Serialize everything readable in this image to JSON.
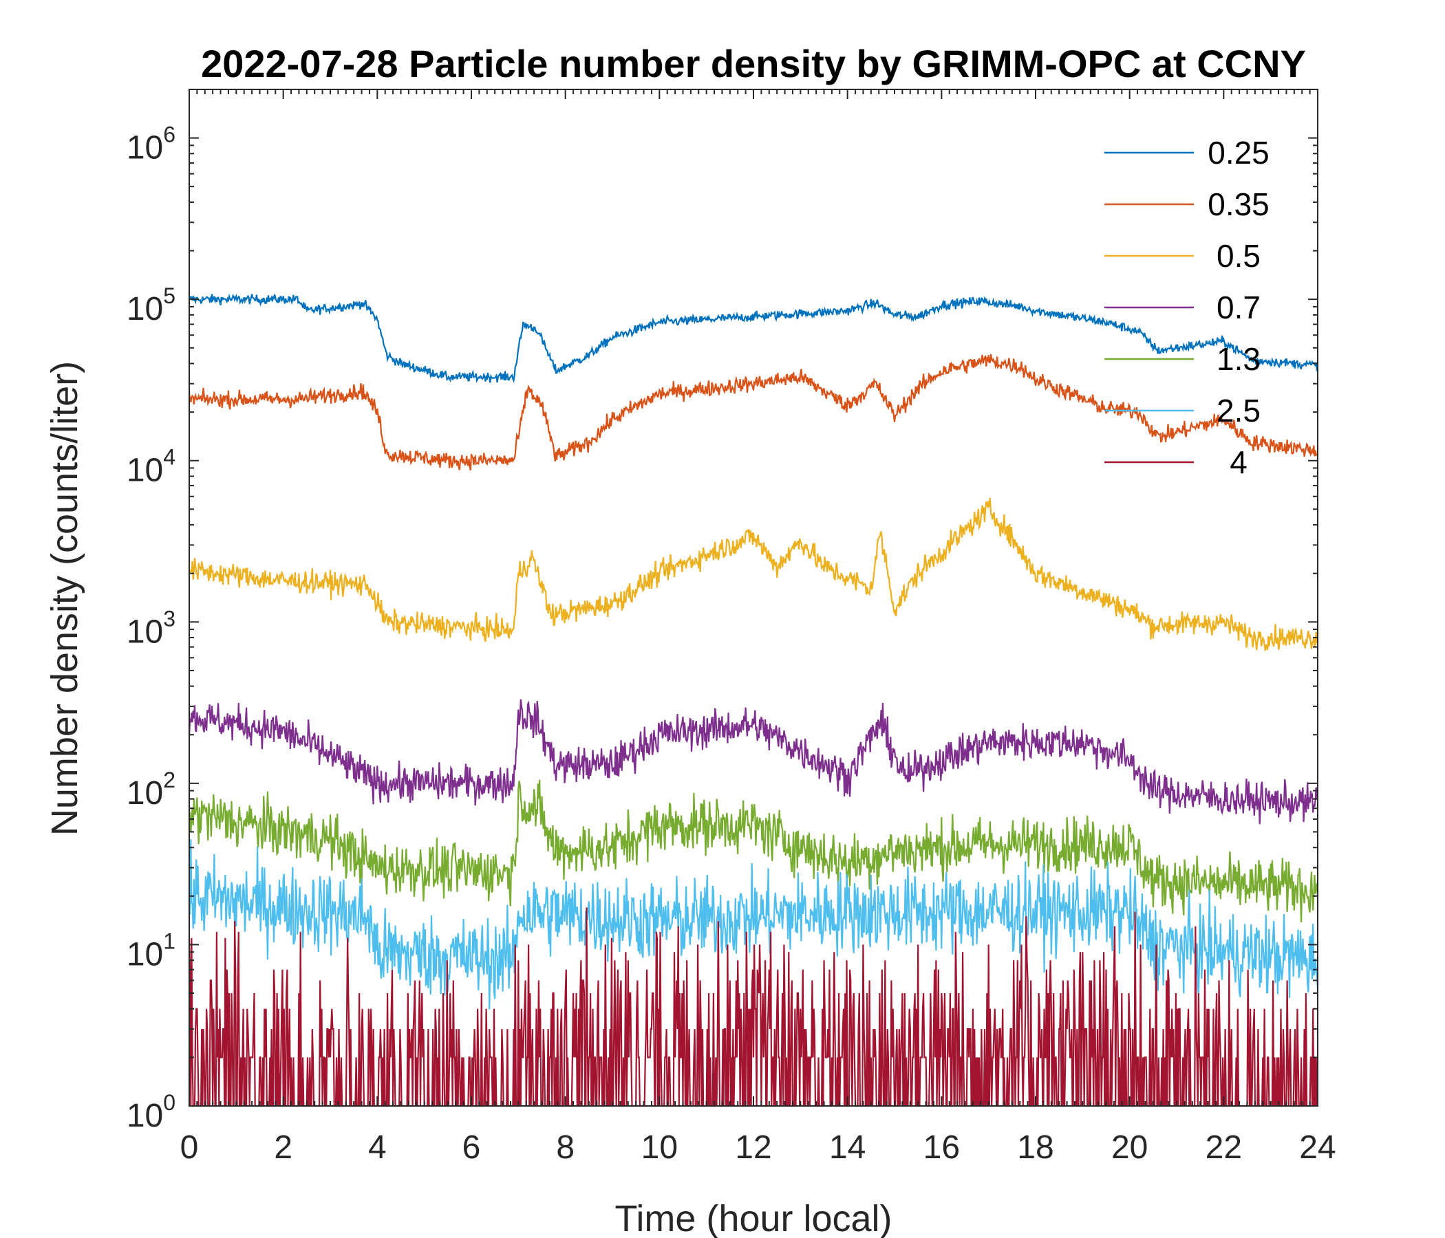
{
  "chart_data": {
    "type": "line",
    "title": "2022-07-28 Particle number density by GRIMM-OPC at CCNY",
    "xlabel": "Time (hour local)",
    "ylabel": "Number density (counts/liter)",
    "xlim": [
      0,
      24
    ],
    "ylim": [
      1,
      2000000
    ],
    "yscale": "log",
    "xticks": [
      0,
      2,
      4,
      6,
      8,
      10,
      12,
      14,
      16,
      18,
      20,
      22,
      24
    ],
    "xtick_labels": [
      "0",
      "2",
      "4",
      "6",
      "8",
      "10",
      "12",
      "14",
      "16",
      "18",
      "20",
      "22",
      "24"
    ],
    "yticks": [
      1,
      10,
      100,
      1000,
      10000,
      100000,
      1000000
    ],
    "ytick_base": "10",
    "ytick_exponents": [
      "0",
      "1",
      "2",
      "3",
      "4",
      "5",
      "6"
    ],
    "legend_position": "top-right",
    "series": [
      {
        "name": "0.25",
        "color": "#0072BD",
        "noise": 0.02,
        "points": [
          [
            0,
            100000
          ],
          [
            2.3,
            100000
          ],
          [
            2.5,
            85000
          ],
          [
            3.5,
            92000
          ],
          [
            3.7,
            95000
          ],
          [
            4.0,
            75000
          ],
          [
            4.2,
            45000
          ],
          [
            4.5,
            40000
          ],
          [
            5.5,
            33000
          ],
          [
            6.9,
            33000
          ],
          [
            7.1,
            70000
          ],
          [
            7.4,
            65000
          ],
          [
            7.8,
            36000
          ],
          [
            8.5,
            45000
          ],
          [
            9,
            58000
          ],
          [
            10,
            72000
          ],
          [
            12,
            78000
          ],
          [
            14,
            85000
          ],
          [
            14.6,
            95000
          ],
          [
            15.0,
            80000
          ],
          [
            15.5,
            78000
          ],
          [
            16,
            92000
          ],
          [
            16.8,
            98000
          ],
          [
            17.7,
            90000
          ],
          [
            18,
            85000
          ],
          [
            19.5,
            72000
          ],
          [
            20.2,
            63000
          ],
          [
            20.6,
            48000
          ],
          [
            22,
            55000
          ],
          [
            22.6,
            42000
          ],
          [
            24,
            39000
          ]
        ]
      },
      {
        "name": "0.35",
        "color": "#D95319",
        "noise": 0.035,
        "points": [
          [
            0,
            24000
          ],
          [
            2.3,
            24000
          ],
          [
            3.7,
            27000
          ],
          [
            4.0,
            20000
          ],
          [
            4.2,
            11000
          ],
          [
            5.5,
            10000
          ],
          [
            6.9,
            10000
          ],
          [
            7.2,
            28000
          ],
          [
            7.5,
            22000
          ],
          [
            7.8,
            10500
          ],
          [
            8.5,
            13000
          ],
          [
            9,
            18000
          ],
          [
            10,
            26000
          ],
          [
            12,
            30000
          ],
          [
            13,
            33000
          ],
          [
            14,
            22000
          ],
          [
            14.6,
            30000
          ],
          [
            15,
            19000
          ],
          [
            15.5,
            28000
          ],
          [
            16,
            36000
          ],
          [
            17,
            42000
          ],
          [
            17.7,
            38000
          ],
          [
            18,
            32000
          ],
          [
            19.5,
            21000
          ],
          [
            20.2,
            20000
          ],
          [
            20.6,
            14000
          ],
          [
            22,
            18000
          ],
          [
            22.6,
            13000
          ],
          [
            24,
            11500
          ]
        ]
      },
      {
        "name": "0.5",
        "color": "#EDB120",
        "noise": 0.05,
        "points": [
          [
            0,
            2100
          ],
          [
            2,
            1800
          ],
          [
            3.8,
            1700
          ],
          [
            4.0,
            1300
          ],
          [
            4.2,
            1000
          ],
          [
            6.9,
            880
          ],
          [
            7.0,
            2000
          ],
          [
            7.3,
            2500
          ],
          [
            7.7,
            1100
          ],
          [
            9,
            1300
          ],
          [
            10,
            2000
          ],
          [
            12,
            3400
          ],
          [
            12.5,
            2200
          ],
          [
            13,
            3200
          ],
          [
            13.5,
            2200
          ],
          [
            14.5,
            1600
          ],
          [
            14.7,
            3600
          ],
          [
            15,
            1200
          ],
          [
            15.5,
            2000
          ],
          [
            16,
            2700
          ],
          [
            17,
            5000
          ],
          [
            17.3,
            4000
          ],
          [
            18,
            2000
          ],
          [
            20,
            1200
          ],
          [
            20.5,
            950
          ],
          [
            22,
            1000
          ],
          [
            22.6,
            800
          ],
          [
            24,
            800
          ]
        ]
      },
      {
        "name": "0.7",
        "color": "#7E2F8E",
        "noise": 0.08,
        "points": [
          [
            0,
            260
          ],
          [
            2,
            210
          ],
          [
            3,
            150
          ],
          [
            4,
            100
          ],
          [
            6.9,
            100
          ],
          [
            7.0,
            280
          ],
          [
            7.4,
            240
          ],
          [
            7.8,
            130
          ],
          [
            9,
            130
          ],
          [
            10,
            200
          ],
          [
            12,
            230
          ],
          [
            13,
            160
          ],
          [
            14,
            110
          ],
          [
            14.7,
            240
          ],
          [
            15.2,
            110
          ],
          [
            16,
            140
          ],
          [
            17,
            180
          ],
          [
            19,
            180
          ],
          [
            20,
            140
          ],
          [
            20.5,
            90
          ],
          [
            22,
            80
          ],
          [
            24,
            75
          ]
        ]
      },
      {
        "name": "1.3",
        "color": "#77AC30",
        "noise": 0.12,
        "points": [
          [
            0,
            65
          ],
          [
            3,
            45
          ],
          [
            4,
            30
          ],
          [
            6.9,
            28
          ],
          [
            7.0,
            80
          ],
          [
            7.4,
            70
          ],
          [
            7.8,
            38
          ],
          [
            9,
            40
          ],
          [
            10,
            55
          ],
          [
            12,
            55
          ],
          [
            13,
            40
          ],
          [
            14,
            32
          ],
          [
            15,
            38
          ],
          [
            17,
            42
          ],
          [
            20,
            42
          ],
          [
            20.5,
            25
          ],
          [
            24,
            22
          ]
        ]
      },
      {
        "name": "2.5",
        "color": "#4DBEEE",
        "noise": 0.18,
        "points": [
          [
            0,
            20
          ],
          [
            3.8,
            15
          ],
          [
            4,
            9
          ],
          [
            6.9,
            8
          ],
          [
            7,
            16
          ],
          [
            10,
            14
          ],
          [
            12,
            15
          ],
          [
            14,
            16
          ],
          [
            17,
            16
          ],
          [
            20,
            16
          ],
          [
            20.5,
            10
          ],
          [
            24,
            8
          ]
        ]
      },
      {
        "name": "4",
        "color": "#A2142F",
        "noise": 0,
        "points": [
          [
            0,
            3
          ],
          [
            4,
            1.5
          ],
          [
            6.9,
            1.2
          ],
          [
            7,
            2.5
          ],
          [
            10,
            3
          ],
          [
            12,
            3
          ],
          [
            14,
            2.5
          ],
          [
            17,
            3
          ],
          [
            20,
            2.5
          ],
          [
            24,
            1.2
          ]
        ]
      }
    ]
  }
}
